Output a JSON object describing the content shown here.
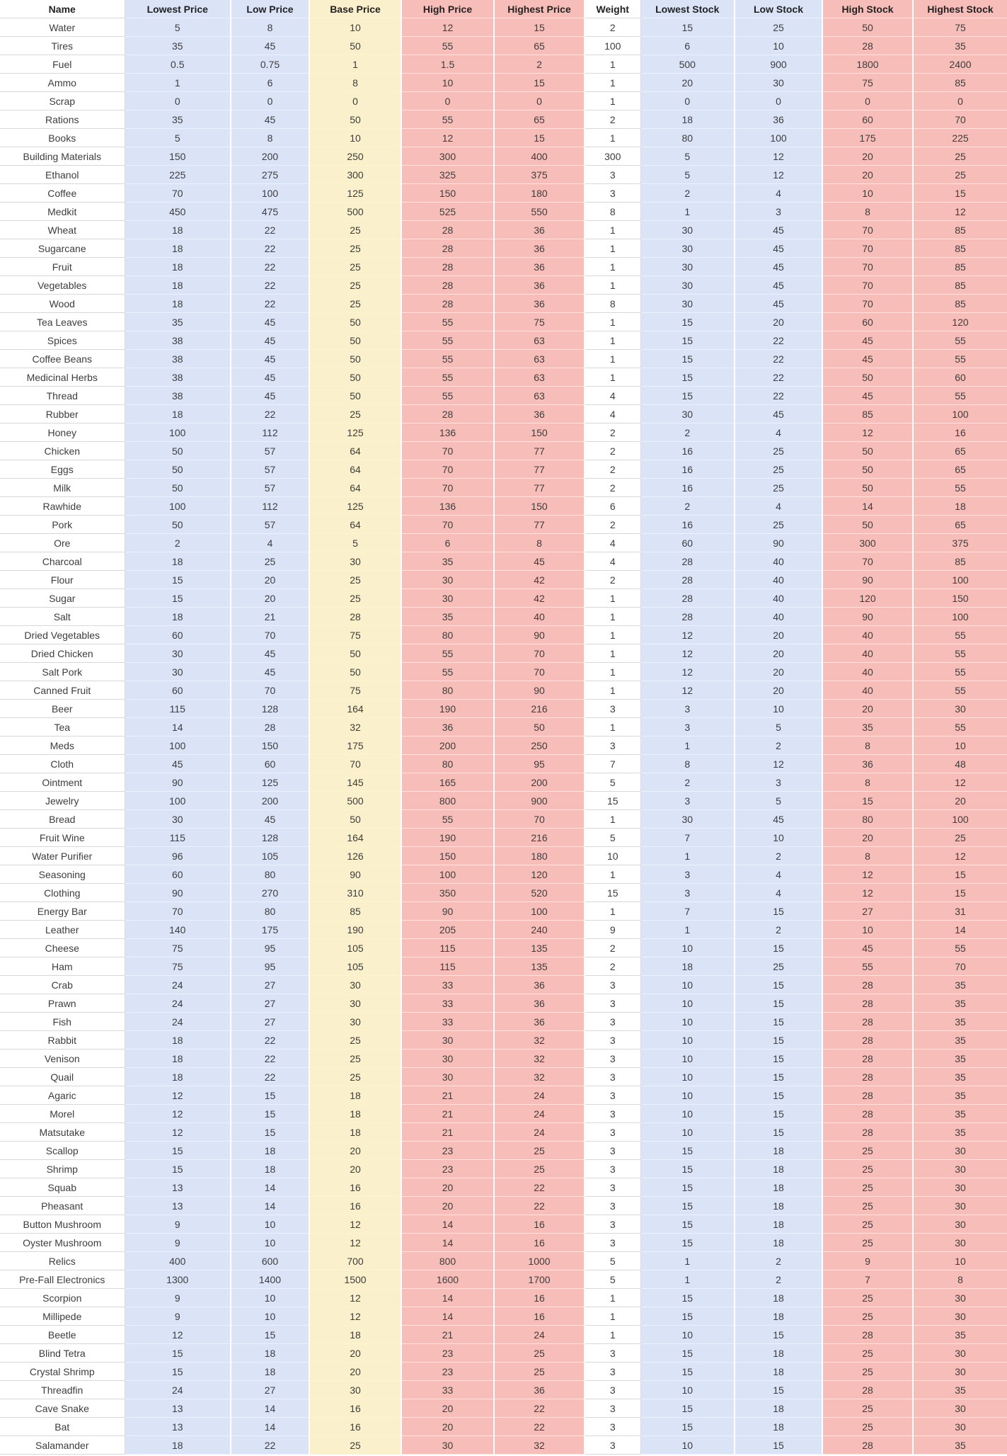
{
  "colors": {
    "blue_fill": "#dbe3f6",
    "yellow_fill": "#fbf0cc",
    "pink_fill": "#f7beb9",
    "white_fill": "#ffffff",
    "grid_line": "#d9d9d9",
    "body_text": "#3d3d3d",
    "header_text": "#222222"
  },
  "table": {
    "columns": [
      "Name",
      "Lowest Price",
      "Low Price",
      "Base Price",
      "High Price",
      "Highest Price",
      "Weight",
      "Lowest Stock",
      "Low Stock",
      "High Stock",
      "Highest Stock"
    ],
    "column_fills": [
      "white",
      "blue",
      "blue",
      "yellow",
      "pink",
      "pink",
      "white",
      "blue",
      "blue",
      "pink",
      "pink"
    ],
    "rows": [
      [
        "Water",
        "5",
        "8",
        "10",
        "12",
        "15",
        "2",
        "15",
        "25",
        "50",
        "75"
      ],
      [
        "Tires",
        "35",
        "45",
        "50",
        "55",
        "65",
        "100",
        "6",
        "10",
        "28",
        "35"
      ],
      [
        "Fuel",
        "0.5",
        "0.75",
        "1",
        "1.5",
        "2",
        "1",
        "500",
        "900",
        "1800",
        "2400"
      ],
      [
        "Ammo",
        "1",
        "6",
        "8",
        "10",
        "15",
        "1",
        "20",
        "30",
        "75",
        "85"
      ],
      [
        "Scrap",
        "0",
        "0",
        "0",
        "0",
        "0",
        "1",
        "0",
        "0",
        "0",
        "0"
      ],
      [
        "Rations",
        "35",
        "45",
        "50",
        "55",
        "65",
        "2",
        "18",
        "36",
        "60",
        "70"
      ],
      [
        "Books",
        "5",
        "8",
        "10",
        "12",
        "15",
        "1",
        "80",
        "100",
        "175",
        "225"
      ],
      [
        "Building Materials",
        "150",
        "200",
        "250",
        "300",
        "400",
        "300",
        "5",
        "12",
        "20",
        "25"
      ],
      [
        "Ethanol",
        "225",
        "275",
        "300",
        "325",
        "375",
        "3",
        "5",
        "12",
        "20",
        "25"
      ],
      [
        "Coffee",
        "70",
        "100",
        "125",
        "150",
        "180",
        "3",
        "2",
        "4",
        "10",
        "15"
      ],
      [
        "Medkit",
        "450",
        "475",
        "500",
        "525",
        "550",
        "8",
        "1",
        "3",
        "8",
        "12"
      ],
      [
        "Wheat",
        "18",
        "22",
        "25",
        "28",
        "36",
        "1",
        "30",
        "45",
        "70",
        "85"
      ],
      [
        "Sugarcane",
        "18",
        "22",
        "25",
        "28",
        "36",
        "1",
        "30",
        "45",
        "70",
        "85"
      ],
      [
        "Fruit",
        "18",
        "22",
        "25",
        "28",
        "36",
        "1",
        "30",
        "45",
        "70",
        "85"
      ],
      [
        "Vegetables",
        "18",
        "22",
        "25",
        "28",
        "36",
        "1",
        "30",
        "45",
        "70",
        "85"
      ],
      [
        "Wood",
        "18",
        "22",
        "25",
        "28",
        "36",
        "8",
        "30",
        "45",
        "70",
        "85"
      ],
      [
        "Tea Leaves",
        "35",
        "45",
        "50",
        "55",
        "75",
        "1",
        "15",
        "20",
        "60",
        "120"
      ],
      [
        "Spices",
        "38",
        "45",
        "50",
        "55",
        "63",
        "1",
        "15",
        "22",
        "45",
        "55"
      ],
      [
        "Coffee Beans",
        "38",
        "45",
        "50",
        "55",
        "63",
        "1",
        "15",
        "22",
        "45",
        "55"
      ],
      [
        "Medicinal Herbs",
        "38",
        "45",
        "50",
        "55",
        "63",
        "1",
        "15",
        "22",
        "50",
        "60"
      ],
      [
        "Thread",
        "38",
        "45",
        "50",
        "55",
        "63",
        "4",
        "15",
        "22",
        "45",
        "55"
      ],
      [
        "Rubber",
        "18",
        "22",
        "25",
        "28",
        "36",
        "4",
        "30",
        "45",
        "85",
        "100"
      ],
      [
        "Honey",
        "100",
        "112",
        "125",
        "136",
        "150",
        "2",
        "2",
        "4",
        "12",
        "16"
      ],
      [
        "Chicken",
        "50",
        "57",
        "64",
        "70",
        "77",
        "2",
        "16",
        "25",
        "50",
        "65"
      ],
      [
        "Eggs",
        "50",
        "57",
        "64",
        "70",
        "77",
        "2",
        "16",
        "25",
        "50",
        "65"
      ],
      [
        "Milk",
        "50",
        "57",
        "64",
        "70",
        "77",
        "2",
        "16",
        "25",
        "50",
        "55"
      ],
      [
        "Rawhide",
        "100",
        "112",
        "125",
        "136",
        "150",
        "6",
        "2",
        "4",
        "14",
        "18"
      ],
      [
        "Pork",
        "50",
        "57",
        "64",
        "70",
        "77",
        "2",
        "16",
        "25",
        "50",
        "65"
      ],
      [
        "Ore",
        "2",
        "4",
        "5",
        "6",
        "8",
        "4",
        "60",
        "90",
        "300",
        "375"
      ],
      [
        "Charcoal",
        "18",
        "25",
        "30",
        "35",
        "45",
        "4",
        "28",
        "40",
        "70",
        "85"
      ],
      [
        "Flour",
        "15",
        "20",
        "25",
        "30",
        "42",
        "2",
        "28",
        "40",
        "90",
        "100"
      ],
      [
        "Sugar",
        "15",
        "20",
        "25",
        "30",
        "42",
        "1",
        "28",
        "40",
        "120",
        "150"
      ],
      [
        "Salt",
        "18",
        "21",
        "28",
        "35",
        "40",
        "1",
        "28",
        "40",
        "90",
        "100"
      ],
      [
        "Dried Vegetables",
        "60",
        "70",
        "75",
        "80",
        "90",
        "1",
        "12",
        "20",
        "40",
        "55"
      ],
      [
        "Dried Chicken",
        "30",
        "45",
        "50",
        "55",
        "70",
        "1",
        "12",
        "20",
        "40",
        "55"
      ],
      [
        "Salt Pork",
        "30",
        "45",
        "50",
        "55",
        "70",
        "1",
        "12",
        "20",
        "40",
        "55"
      ],
      [
        "Canned Fruit",
        "60",
        "70",
        "75",
        "80",
        "90",
        "1",
        "12",
        "20",
        "40",
        "55"
      ],
      [
        "Beer",
        "115",
        "128",
        "164",
        "190",
        "216",
        "3",
        "3",
        "10",
        "20",
        "30"
      ],
      [
        "Tea",
        "14",
        "28",
        "32",
        "36",
        "50",
        "1",
        "3",
        "5",
        "35",
        "55"
      ],
      [
        "Meds",
        "100",
        "150",
        "175",
        "200",
        "250",
        "3",
        "1",
        "2",
        "8",
        "10"
      ],
      [
        "Cloth",
        "45",
        "60",
        "70",
        "80",
        "95",
        "7",
        "8",
        "12",
        "36",
        "48"
      ],
      [
        "Ointment",
        "90",
        "125",
        "145",
        "165",
        "200",
        "5",
        "2",
        "3",
        "8",
        "12"
      ],
      [
        "Jewelry",
        "100",
        "200",
        "500",
        "800",
        "900",
        "15",
        "3",
        "5",
        "15",
        "20"
      ],
      [
        "Bread",
        "30",
        "45",
        "50",
        "55",
        "70",
        "1",
        "30",
        "45",
        "80",
        "100"
      ],
      [
        "Fruit Wine",
        "115",
        "128",
        "164",
        "190",
        "216",
        "5",
        "7",
        "10",
        "20",
        "25"
      ],
      [
        "Water Purifier",
        "96",
        "105",
        "126",
        "150",
        "180",
        "10",
        "1",
        "2",
        "8",
        "12"
      ],
      [
        "Seasoning",
        "60",
        "80",
        "90",
        "100",
        "120",
        "1",
        "3",
        "4",
        "12",
        "15"
      ],
      [
        "Clothing",
        "90",
        "270",
        "310",
        "350",
        "520",
        "15",
        "3",
        "4",
        "12",
        "15"
      ],
      [
        "Energy Bar",
        "70",
        "80",
        "85",
        "90",
        "100",
        "1",
        "7",
        "15",
        "27",
        "31"
      ],
      [
        "Leather",
        "140",
        "175",
        "190",
        "205",
        "240",
        "9",
        "1",
        "2",
        "10",
        "14"
      ],
      [
        "Cheese",
        "75",
        "95",
        "105",
        "115",
        "135",
        "2",
        "10",
        "15",
        "45",
        "55"
      ],
      [
        "Ham",
        "75",
        "95",
        "105",
        "115",
        "135",
        "2",
        "18",
        "25",
        "55",
        "70"
      ],
      [
        "Crab",
        "24",
        "27",
        "30",
        "33",
        "36",
        "3",
        "10",
        "15",
        "28",
        "35"
      ],
      [
        "Prawn",
        "24",
        "27",
        "30",
        "33",
        "36",
        "3",
        "10",
        "15",
        "28",
        "35"
      ],
      [
        "Fish",
        "24",
        "27",
        "30",
        "33",
        "36",
        "3",
        "10",
        "15",
        "28",
        "35"
      ],
      [
        "Rabbit",
        "18",
        "22",
        "25",
        "30",
        "32",
        "3",
        "10",
        "15",
        "28",
        "35"
      ],
      [
        "Venison",
        "18",
        "22",
        "25",
        "30",
        "32",
        "3",
        "10",
        "15",
        "28",
        "35"
      ],
      [
        "Quail",
        "18",
        "22",
        "25",
        "30",
        "32",
        "3",
        "10",
        "15",
        "28",
        "35"
      ],
      [
        "Agaric",
        "12",
        "15",
        "18",
        "21",
        "24",
        "3",
        "10",
        "15",
        "28",
        "35"
      ],
      [
        "Morel",
        "12",
        "15",
        "18",
        "21",
        "24",
        "3",
        "10",
        "15",
        "28",
        "35"
      ],
      [
        "Matsutake",
        "12",
        "15",
        "18",
        "21",
        "24",
        "3",
        "10",
        "15",
        "28",
        "35"
      ],
      [
        "Scallop",
        "15",
        "18",
        "20",
        "23",
        "25",
        "3",
        "15",
        "18",
        "25",
        "30"
      ],
      [
        "Shrimp",
        "15",
        "18",
        "20",
        "23",
        "25",
        "3",
        "15",
        "18",
        "25",
        "30"
      ],
      [
        "Squab",
        "13",
        "14",
        "16",
        "20",
        "22",
        "3",
        "15",
        "18",
        "25",
        "30"
      ],
      [
        "Pheasant",
        "13",
        "14",
        "16",
        "20",
        "22",
        "3",
        "15",
        "18",
        "25",
        "30"
      ],
      [
        "Button Mushroom",
        "9",
        "10",
        "12",
        "14",
        "16",
        "3",
        "15",
        "18",
        "25",
        "30"
      ],
      [
        "Oyster Mushroom",
        "9",
        "10",
        "12",
        "14",
        "16",
        "3",
        "15",
        "18",
        "25",
        "30"
      ],
      [
        "Relics",
        "400",
        "600",
        "700",
        "800",
        "1000",
        "5",
        "1",
        "2",
        "9",
        "10"
      ],
      [
        "Pre-Fall Electronics",
        "1300",
        "1400",
        "1500",
        "1600",
        "1700",
        "5",
        "1",
        "2",
        "7",
        "8"
      ],
      [
        "Scorpion",
        "9",
        "10",
        "12",
        "14",
        "16",
        "1",
        "15",
        "18",
        "25",
        "30"
      ],
      [
        "Millipede",
        "9",
        "10",
        "12",
        "14",
        "16",
        "1",
        "15",
        "18",
        "25",
        "30"
      ],
      [
        "Beetle",
        "12",
        "15",
        "18",
        "21",
        "24",
        "1",
        "10",
        "15",
        "28",
        "35"
      ],
      [
        "Blind Tetra",
        "15",
        "18",
        "20",
        "23",
        "25",
        "3",
        "15",
        "18",
        "25",
        "30"
      ],
      [
        "Crystal Shrimp",
        "15",
        "18",
        "20",
        "23",
        "25",
        "3",
        "15",
        "18",
        "25",
        "30"
      ],
      [
        "Threadfin",
        "24",
        "27",
        "30",
        "33",
        "36",
        "3",
        "10",
        "15",
        "28",
        "35"
      ],
      [
        "Cave Snake",
        "13",
        "14",
        "16",
        "20",
        "22",
        "3",
        "15",
        "18",
        "25",
        "30"
      ],
      [
        "Bat",
        "13",
        "14",
        "16",
        "20",
        "22",
        "3",
        "15",
        "18",
        "25",
        "30"
      ],
      [
        "Salamander",
        "18",
        "22",
        "25",
        "30",
        "32",
        "3",
        "10",
        "15",
        "28",
        "35"
      ]
    ]
  }
}
